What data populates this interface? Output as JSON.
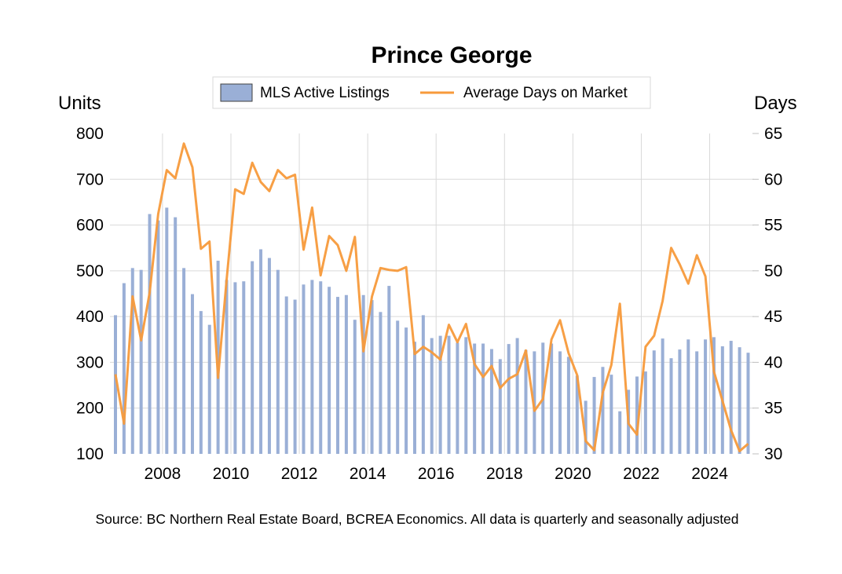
{
  "chart_data": {
    "type": "bar+line",
    "title": "Prince George",
    "source": "Source: BC Northern Real Estate Board, BCREA Economics. All data is quarterly and seasonally adjusted",
    "legend": {
      "placement": "top-center",
      "entries": [
        {
          "name": "MLS Active Listings",
          "kind": "bar",
          "color": "#9AAFD6"
        },
        {
          "name": "Average Days on Market",
          "kind": "line",
          "color": "#F79A3B"
        }
      ]
    },
    "y_left": {
      "label": "Units",
      "min": 100,
      "max": 800,
      "ticks": [
        "800",
        "700",
        "600",
        "500",
        "400",
        "300",
        "200",
        "100"
      ]
    },
    "y_right": {
      "label": "Days",
      "min": 30,
      "max": 65,
      "ticks": [
        "65",
        "60",
        "55",
        "50",
        "45",
        "40",
        "35",
        "30"
      ]
    },
    "x": {
      "start": "2006 Q3",
      "end": "2025 Q1",
      "frequency": "quarterly",
      "tick_labels": [
        "2008",
        "2010",
        "2012",
        "2014",
        "2016",
        "2018",
        "2020",
        "2022",
        "2024"
      ]
    },
    "grid": true,
    "series": [
      {
        "name": "MLS Active Listings",
        "axis": "left",
        "type": "bar",
        "values": [
          403,
          473,
          506,
          502,
          624,
          610,
          638,
          617,
          506,
          449,
          412,
          382,
          522,
          480,
          475,
          477,
          521,
          547,
          528,
          502,
          444,
          437,
          470,
          480,
          477,
          465,
          443,
          447,
          393,
          447,
          436,
          410,
          467,
          391,
          376,
          345,
          403,
          353,
          358,
          358,
          343,
          355,
          341,
          341,
          329,
          307,
          340,
          353,
          327,
          324,
          343,
          341,
          324,
          312,
          271,
          216,
          268,
          290,
          273,
          193,
          240,
          269,
          280,
          326,
          352,
          309,
          328,
          350,
          324,
          350,
          355,
          335,
          347,
          333,
          321
        ]
      },
      {
        "name": "Average Days on Market",
        "axis": "right",
        "type": "line",
        "values": [
          38.7,
          33.3,
          47.2,
          42.4,
          47.6,
          56.2,
          61.0,
          60.1,
          63.9,
          61.3,
          52.4,
          53.2,
          38.3,
          49.0,
          58.9,
          58.4,
          61.8,
          59.7,
          58.7,
          61.0,
          60.1,
          60.5,
          52.3,
          56.9,
          49.5,
          53.8,
          52.8,
          50.0,
          53.7,
          41.2,
          47.2,
          50.3,
          50.1,
          50.0,
          50.4,
          40.9,
          41.7,
          41.1,
          40.3,
          44.1,
          42.2,
          44.2,
          39.8,
          38.4,
          39.6,
          37.2,
          38.2,
          38.7,
          41.3,
          34.7,
          36.0,
          42.5,
          44.6,
          41.0,
          38.6,
          31.4,
          30.4,
          36.7,
          39.7,
          46.4,
          33.3,
          32.1,
          41.7,
          42.9,
          46.7,
          52.5,
          50.7,
          48.6,
          51.7,
          49.4,
          39.0,
          35.8,
          32.6,
          30.3,
          31.1
        ]
      }
    ]
  }
}
